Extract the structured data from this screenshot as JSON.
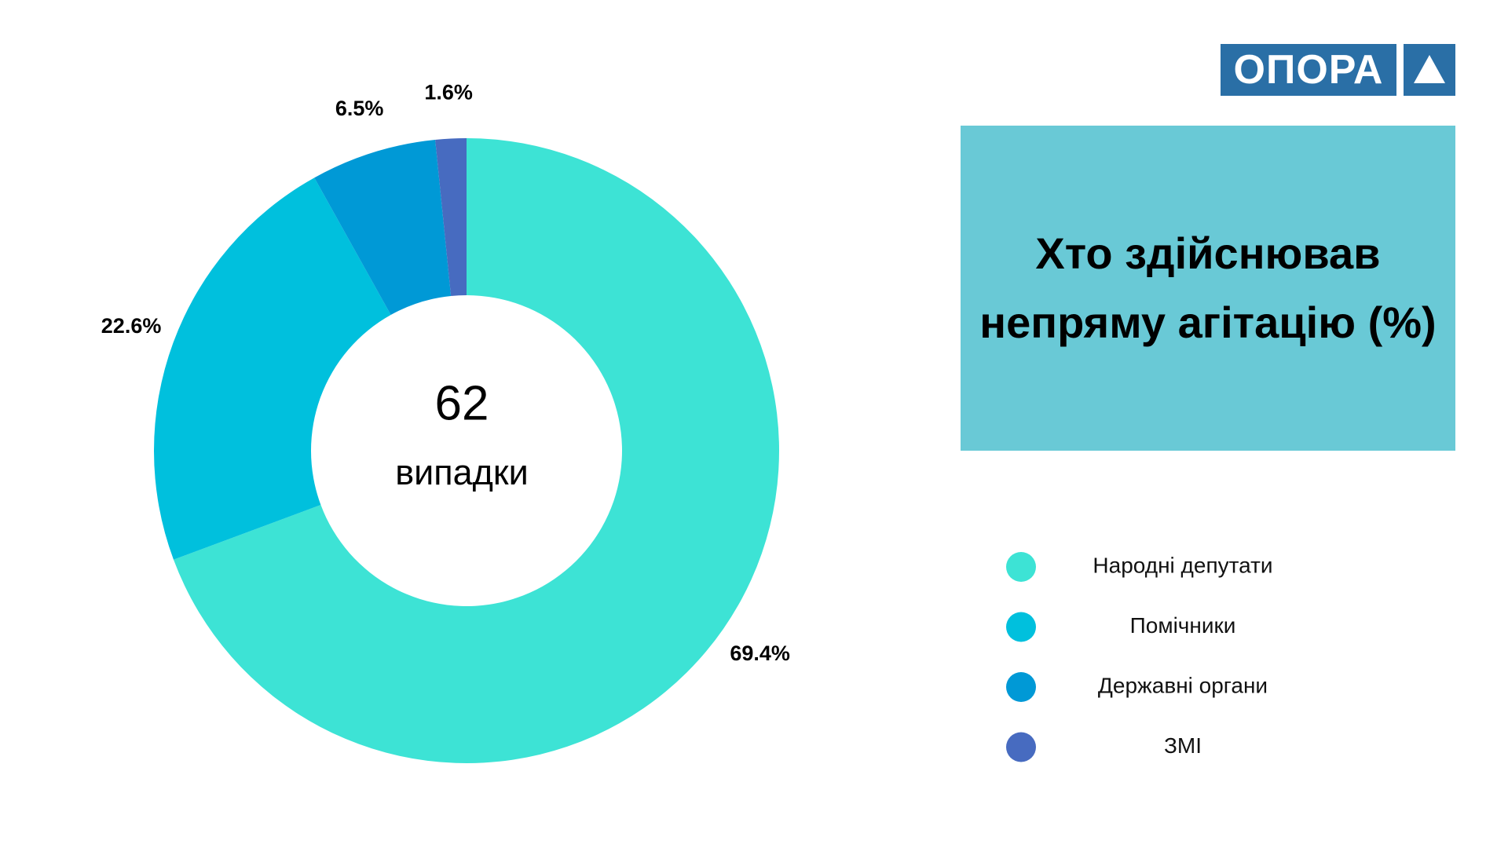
{
  "logo": {
    "text": "ОПОРА"
  },
  "chart_data": {
    "type": "pie",
    "title": "Хто здійснював непряму агітацію (%)",
    "center_value": 62,
    "center_label": "випадки",
    "categories": [
      "Народні депутати",
      "Помічники",
      "Державні органи",
      "ЗМІ"
    ],
    "values": [
      69.4,
      22.6,
      6.5,
      1.6
    ],
    "value_labels": [
      "69.4%",
      "22.6%",
      "6.5%",
      "1.6%"
    ],
    "colors": [
      "#3de3d5",
      "#00c0dd",
      "#0099d6",
      "#476bc0"
    ]
  }
}
